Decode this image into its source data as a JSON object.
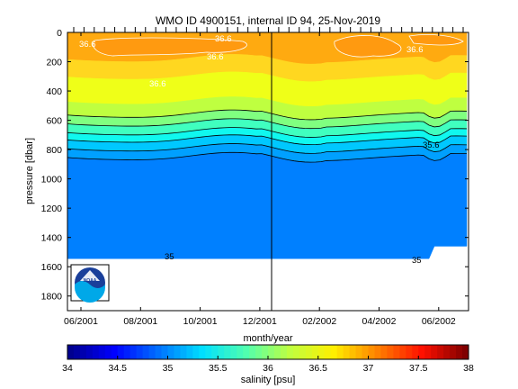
{
  "chart_data": {
    "type": "heatmap",
    "title": "WMO ID 4900151, internal ID 94, 25-Nov-2019",
    "xlabel": "month/year",
    "ylabel": "pressure [dbar]",
    "x_ticks": [
      "06/2001",
      "08/2001",
      "10/2001",
      "12/2001",
      "02/2002",
      "04/2002",
      "06/2002"
    ],
    "y_ticks": [
      0,
      200,
      400,
      600,
      800,
      1000,
      1200,
      1400,
      1600,
      1800
    ],
    "ylim": [
      1900,
      0
    ],
    "grid": false,
    "colorbar": {
      "label": "salinity [psu]",
      "ticks": [
        "34",
        "34.5",
        "35",
        "35.5",
        "36",
        "36.5",
        "37",
        "37.5",
        "38"
      ],
      "range": [
        34,
        38
      ],
      "colormap": [
        "#00008f",
        "#0000ff",
        "#0070ff",
        "#00dfff",
        "#50ffaf",
        "#bfff40",
        "#ffef00",
        "#ff8000",
        "#ff1000",
        "#800000"
      ]
    },
    "contour_labels": [
      "36.6",
      "36.6",
      "36.6",
      "36.6",
      "35.6",
      "35",
      "35"
    ],
    "profile_dates": [
      "06/2001",
      "07/2001",
      "07/2001",
      "07/2001",
      "08/2001",
      "08/2001",
      "08/2001",
      "09/2001",
      "09/2001",
      "09/2001",
      "10/2001",
      "10/2001",
      "10/2001",
      "11/2001",
      "11/2001",
      "11/2001",
      "12/2001",
      "12/2001",
      "12/2001",
      "01/2002",
      "01/2002",
      "01/2002",
      "02/2002",
      "02/2002",
      "02/2002",
      "03/2002",
      "03/2002",
      "03/2002",
      "04/2002",
      "04/2002",
      "04/2002",
      "05/2002",
      "05/2002",
      "05/2002",
      "06/2002",
      "06/2002",
      "06/2002",
      "07/2002",
      "07/2002"
    ],
    "marked_date": "12/2001",
    "bands": [
      {
        "salinity": 36.6,
        "color": "#ffaa10"
      },
      {
        "salinity": 36.45,
        "color": "#ffd720"
      },
      {
        "salinity": 36.3,
        "color": "#efff18"
      },
      {
        "salinity": 36.1,
        "color": "#bfff40"
      },
      {
        "salinity": 35.95,
        "color": "#80ff80"
      },
      {
        "salinity": 35.8,
        "color": "#40ffbf"
      },
      {
        "salinity": 35.65,
        "color": "#10f8ef"
      },
      {
        "salinity": 35.5,
        "color": "#00c8ff"
      },
      {
        "salinity": 35.3,
        "color": "#00a0ff"
      },
      {
        "salinity": 35.1,
        "color": "#0080ff"
      }
    ]
  },
  "logo": {
    "text": "NOAA"
  }
}
